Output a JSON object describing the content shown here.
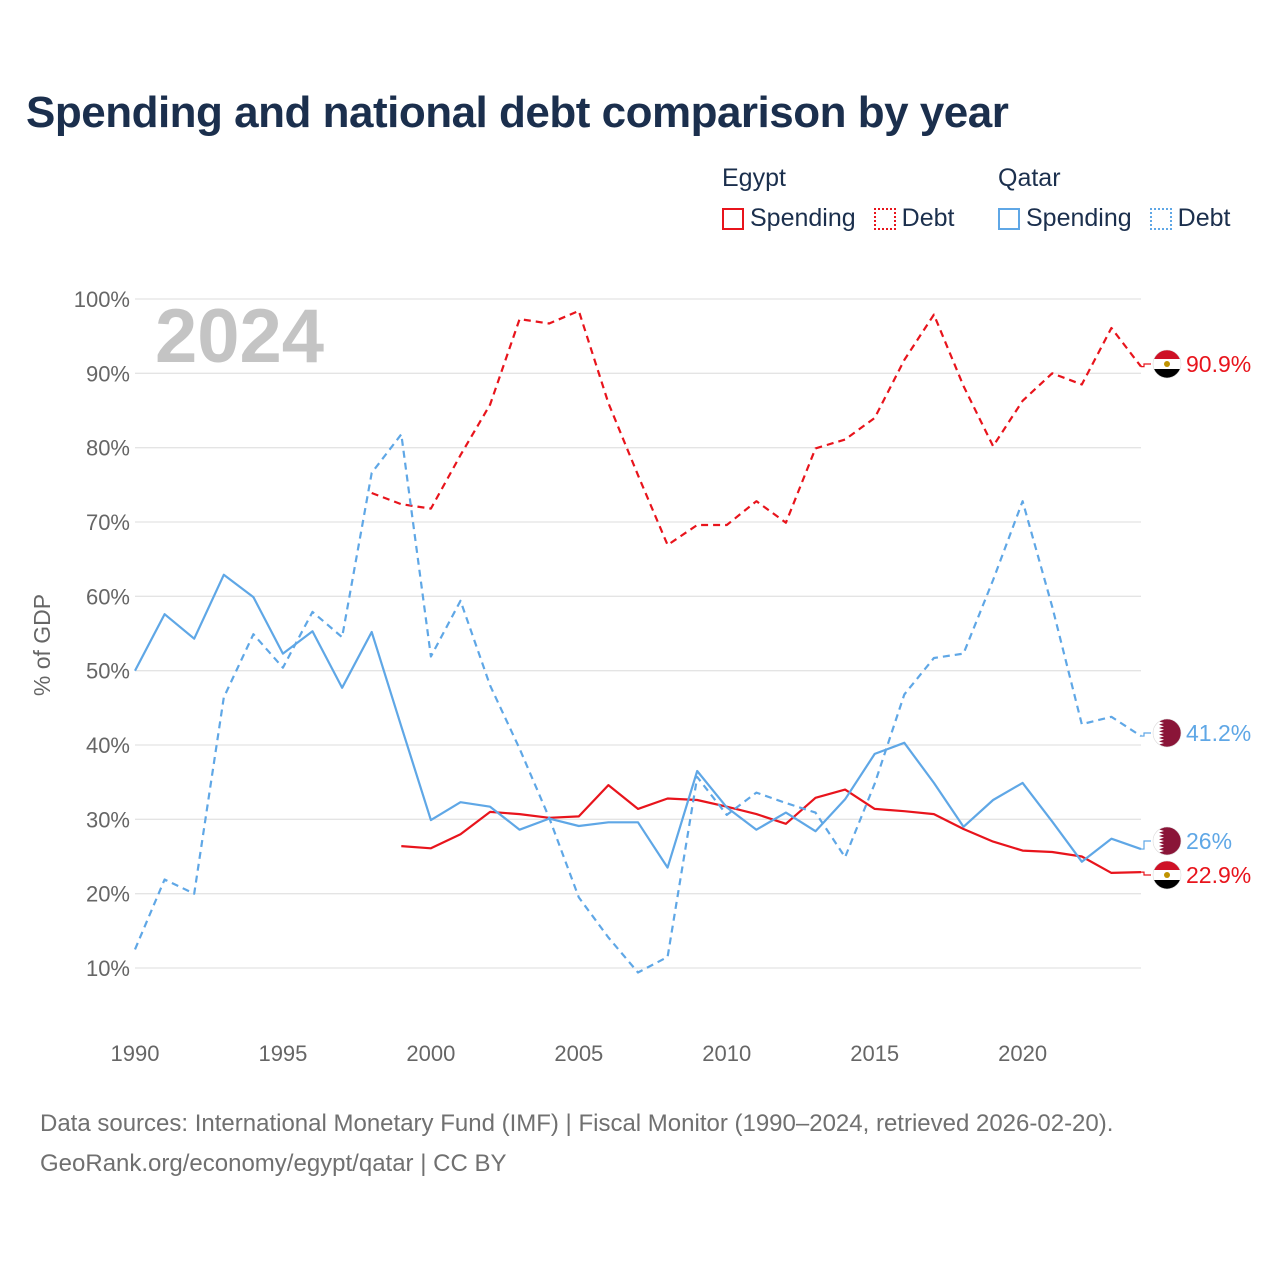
{
  "title": "Spending and national debt comparison by year",
  "legend": {
    "groups": [
      {
        "name": "Egypt",
        "items": [
          {
            "label": "Spending"
          },
          {
            "label": "Debt"
          }
        ]
      },
      {
        "name": "Qatar",
        "items": [
          {
            "label": "Spending"
          },
          {
            "label": "Debt"
          }
        ]
      }
    ]
  },
  "footer": {
    "line1": "Data sources: International Monetary Fund (IMF) | Fiscal Monitor (1990–2024, retrieved 2026-02-20).",
    "line2": "GeoRank.org/economy/egypt/qatar | CC BY"
  },
  "colors": {
    "egypt": "#e8141c",
    "qatar": "#5fa7e6",
    "grid": "#e4e4e4",
    "text": "#666666",
    "year": "#c4c4c4"
  },
  "chart_data": {
    "type": "line",
    "year_label": "2024",
    "ylabel": "% of GDP",
    "ylim": [
      6,
      103
    ],
    "xlim": [
      1990,
      2024
    ],
    "yticks": [
      10,
      20,
      30,
      40,
      50,
      60,
      70,
      80,
      90,
      100
    ],
    "ytick_labels": [
      "10%",
      "20%",
      "30%",
      "40%",
      "50%",
      "60%",
      "70%",
      "80%",
      "90%",
      "100%"
    ],
    "xticks": [
      1990,
      1995,
      2000,
      2005,
      2010,
      2015,
      2020
    ],
    "xtick_labels": [
      "1990",
      "1995",
      "2000",
      "2005",
      "2010",
      "2015",
      "2020"
    ],
    "series": [
      {
        "name": "Egypt Debt",
        "country": "Egypt",
        "metric": "Debt",
        "color": "#e8141c",
        "dashed": true,
        "end_label": "90.9%",
        "flag": "egypt-flag",
        "x": [
          1998,
          1999,
          2000,
          2001,
          2002,
          2003,
          2004,
          2005,
          2006,
          2007,
          2008,
          2009,
          2010,
          2011,
          2012,
          2013,
          2014,
          2015,
          2016,
          2017,
          2018,
          2019,
          2020,
          2021,
          2022,
          2023,
          2024
        ],
        "values": [
          73.9,
          72.4,
          71.8,
          79.0,
          85.8,
          97.3,
          96.7,
          98.4,
          86.0,
          76.3,
          66.9,
          69.6,
          69.6,
          72.8,
          69.9,
          79.9,
          81.1,
          84.0,
          91.8,
          97.9,
          88.3,
          80.2,
          86.3,
          90.0,
          88.5,
          96.1,
          90.9
        ]
      },
      {
        "name": "Egypt Spending",
        "country": "Egypt",
        "metric": "Spending",
        "color": "#e8141c",
        "dashed": false,
        "end_label": "22.9%",
        "flag": "egypt-flag",
        "x": [
          1999,
          2000,
          2001,
          2002,
          2003,
          2004,
          2005,
          2006,
          2007,
          2008,
          2009,
          2010,
          2011,
          2012,
          2013,
          2014,
          2015,
          2016,
          2017,
          2018,
          2019,
          2020,
          2021,
          2022,
          2023,
          2024
        ],
        "values": [
          26.4,
          26.1,
          28.0,
          31.0,
          30.7,
          30.2,
          30.4,
          34.6,
          31.4,
          32.8,
          32.6,
          31.7,
          30.7,
          29.4,
          32.9,
          34.0,
          31.4,
          31.1,
          30.7,
          28.7,
          27.0,
          25.8,
          25.6,
          25.0,
          22.8,
          22.9
        ]
      },
      {
        "name": "Qatar Debt",
        "country": "Qatar",
        "metric": "Debt",
        "color": "#5fa7e6",
        "dashed": true,
        "end_label": "41.2%",
        "flag": "qatar-flag",
        "x": [
          1990,
          1991,
          1992,
          1993,
          1994,
          1995,
          1996,
          1997,
          1998,
          1999,
          2000,
          2001,
          2002,
          2003,
          2004,
          2005,
          2006,
          2007,
          2008,
          2009,
          2010,
          2011,
          2012,
          2013,
          2014,
          2015,
          2016,
          2017,
          2018,
          2019,
          2020,
          2021,
          2022,
          2023,
          2024
        ],
        "values": [
          12.5,
          21.9,
          20.0,
          46.4,
          54.9,
          50.4,
          57.9,
          54.5,
          76.6,
          81.8,
          51.9,
          59.4,
          48.0,
          39.5,
          30.2,
          19.5,
          14.1,
          9.4,
          11.5,
          35.7,
          30.6,
          33.6,
          32.2,
          30.9,
          24.9,
          34.8,
          46.8,
          51.7,
          52.3,
          62.2,
          72.8,
          58.6,
          42.8,
          43.8,
          41.2
        ]
      },
      {
        "name": "Qatar Spending",
        "country": "Qatar",
        "metric": "Spending",
        "color": "#5fa7e6",
        "dashed": false,
        "end_label": "26%",
        "flag": "qatar-flag",
        "x": [
          1990,
          1991,
          1992,
          1993,
          1994,
          1995,
          1996,
          1997,
          1998,
          1999,
          2000,
          2001,
          2002,
          2003,
          2004,
          2005,
          2006,
          2007,
          2008,
          2009,
          2010,
          2011,
          2012,
          2013,
          2014,
          2015,
          2016,
          2017,
          2018,
          2019,
          2020,
          2021,
          2022,
          2023,
          2024
        ],
        "values": [
          50.0,
          57.6,
          54.3,
          62.9,
          59.9,
          52.3,
          55.3,
          47.7,
          55.2,
          42.5,
          29.9,
          32.3,
          31.7,
          28.6,
          30.1,
          29.1,
          29.6,
          29.6,
          23.5,
          36.5,
          31.6,
          28.6,
          30.9,
          28.4,
          32.7,
          38.8,
          40.3,
          34.9,
          29.0,
          32.6,
          34.9,
          29.7,
          24.3,
          27.4,
          26.0
        ]
      }
    ]
  }
}
